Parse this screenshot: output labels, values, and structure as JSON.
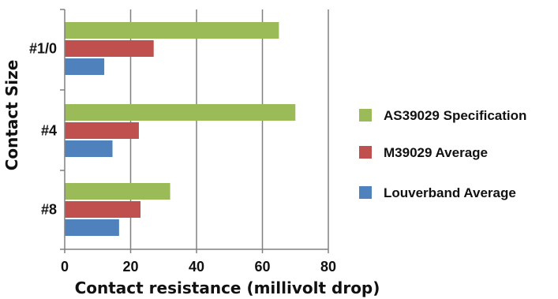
{
  "chart_data": {
    "type": "bar",
    "orientation": "horizontal",
    "categories": [
      "#1/0",
      "#4",
      "#8"
    ],
    "series": [
      {
        "name": "AS39029 Specification",
        "color": "#9bbb59",
        "values": [
          65,
          70,
          32
        ]
      },
      {
        "name": "M39029 Average",
        "color": "#c0504d",
        "values": [
          27,
          22.5,
          23
        ]
      },
      {
        "name": "Louverband Average",
        "color": "#4f81bd",
        "values": [
          12,
          14.5,
          16.5
        ]
      }
    ],
    "xlabel": "Contact resistance (millivolt drop)",
    "ylabel": "Contact Size",
    "xlim": [
      0,
      80
    ],
    "xticks": [
      "0",
      "20",
      "40",
      "60",
      "80"
    ],
    "grid": true,
    "legend_position": "right"
  }
}
